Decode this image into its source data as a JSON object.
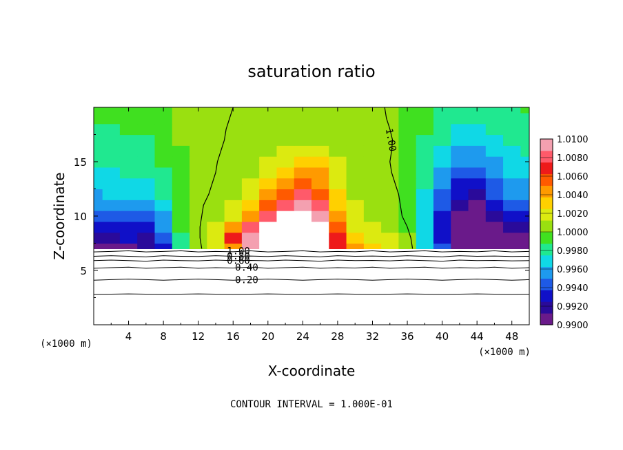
{
  "chart_data": {
    "type": "heatmap",
    "title": "saturation ratio",
    "xlabel": "X-coordinate",
    "ylabel": "Z-coordinate",
    "x_unit": "(×1000 m)",
    "z_unit": "(×1000 m)",
    "footer": "CONTOUR INTERVAL = 1.000E-01",
    "xlim": [
      0,
      50
    ],
    "ylim": [
      0,
      20
    ],
    "x_ticks": [
      4,
      8,
      12,
      16,
      20,
      24,
      28,
      32,
      36,
      40,
      44,
      48
    ],
    "y_ticks": [
      5,
      10,
      15
    ],
    "colorbar": {
      "min": 0.99,
      "max": 1.01,
      "tick_labels": [
        "1.0100",
        "1.0080",
        "1.0060",
        "1.0040",
        "1.0020",
        "1.0000",
        "0.9980",
        "0.9960",
        "0.9940",
        "0.9920",
        "0.9900"
      ],
      "colors": [
        "#6a1a8a",
        "#2a0a9a",
        "#1010c8",
        "#1e5ae6",
        "#1e9aee",
        "#10d8e6",
        "#20e890",
        "#40e020",
        "#9ae010",
        "#dcea10",
        "#ffd000",
        "#ff9a00",
        "#ff5a00",
        "#ee1a1a",
        "#ff5a6a",
        "#f4a0b0"
      ]
    },
    "field": {
      "x": [
        0,
        2,
        4,
        6,
        8,
        10,
        12,
        14,
        16,
        18,
        20,
        22,
        24,
        26,
        28,
        30,
        32,
        34,
        36,
        38,
        40,
        42,
        44,
        46,
        48,
        50
      ],
      "z": [
        7,
        8,
        9,
        10,
        11,
        12,
        13,
        14,
        15,
        16,
        17,
        18,
        19,
        20
      ],
      "values": [
        [
          0.9905,
          0.991,
          0.9912,
          0.9915,
          0.993,
          0.9985,
          1.0,
          1.002,
          1.005,
          1.009,
          1.012,
          1.013,
          1.012,
          1.012,
          1.007,
          1.004,
          1.003,
          1.002,
          1.0,
          0.997,
          0.994,
          0.99,
          0.989,
          0.991,
          0.9905,
          0.99
        ],
        [
          0.9915,
          0.992,
          0.9925,
          0.992,
          0.994,
          0.9985,
          1.0,
          1.002,
          1.007,
          1.009,
          1.012,
          1.013,
          1.012,
          1.012,
          1.007,
          1.0035,
          1.002,
          1.0015,
          1.0,
          0.997,
          0.9935,
          0.989,
          0.988,
          0.9905,
          0.991,
          0.9905
        ],
        [
          0.993,
          0.9935,
          0.9935,
          0.9925,
          0.995,
          0.999,
          1.0,
          1.0015,
          1.004,
          1.0075,
          1.011,
          1.013,
          1.013,
          1.012,
          1.006,
          1.0025,
          1.0015,
          1.001,
          0.9995,
          0.9965,
          0.993,
          0.9895,
          0.9885,
          0.991,
          0.992,
          0.992
        ],
        [
          0.9945,
          0.9945,
          0.994,
          0.994,
          0.996,
          0.999,
          1.0,
          1.001,
          1.0025,
          1.0045,
          1.008,
          1.012,
          1.013,
          1.01,
          1.0045,
          1.002,
          1.001,
          1.0005,
          0.9995,
          0.9965,
          0.9935,
          0.9905,
          0.9895,
          0.992,
          0.9935,
          0.9935
        ],
        [
          0.9955,
          0.9955,
          0.9955,
          0.9955,
          0.997,
          0.9995,
          1.0,
          1.0005,
          1.0015,
          1.003,
          1.0055,
          1.008,
          1.0095,
          1.0075,
          1.0035,
          1.0015,
          1.0008,
          1.0003,
          0.9995,
          0.9968,
          0.994,
          0.9915,
          0.9905,
          0.993,
          0.9945,
          0.9945
        ],
        [
          0.9962,
          0.9963,
          0.9965,
          0.9965,
          0.9978,
          0.9996,
          1.0,
          1.0003,
          1.001,
          1.002,
          1.004,
          1.006,
          1.0075,
          1.006,
          1.003,
          1.0012,
          1.0006,
          1.0002,
          0.9995,
          0.997,
          0.9945,
          0.9925,
          0.992,
          0.994,
          0.995,
          0.9952
        ],
        [
          0.9968,
          0.9969,
          0.997,
          0.9972,
          0.9983,
          0.9997,
          1.0,
          1.0002,
          1.0007,
          1.0015,
          1.003,
          1.0045,
          1.006,
          1.005,
          1.0025,
          1.001,
          1.0005,
          1.0002,
          0.9996,
          0.9975,
          0.9952,
          0.9935,
          0.9932,
          0.9948,
          0.9958,
          0.996
        ],
        [
          0.9973,
          0.9974,
          0.9975,
          0.9977,
          0.9987,
          0.9998,
          1.0,
          1.0001,
          1.0005,
          1.001,
          1.0022,
          1.0035,
          1.0045,
          1.004,
          1.002,
          1.0008,
          1.0004,
          1.0001,
          0.9996,
          0.9978,
          0.9958,
          0.9945,
          0.9942,
          0.9955,
          0.9963,
          0.9965
        ],
        [
          0.9977,
          0.9978,
          0.9979,
          0.9981,
          0.999,
          0.9999,
          1.0,
          1.0001,
          1.0003,
          1.0007,
          1.0015,
          1.0025,
          1.0032,
          1.0028,
          1.0015,
          1.0006,
          1.0003,
          1.0001,
          0.9997,
          0.9981,
          0.9964,
          0.9953,
          0.995,
          0.996,
          0.9967,
          0.997
        ],
        [
          0.998,
          0.9981,
          0.9982,
          0.9984,
          0.9992,
          0.9999,
          1.0,
          1.0,
          1.0002,
          1.0004,
          1.0009,
          1.0015,
          1.002,
          1.0018,
          1.001,
          1.0004,
          1.0002,
          1.0001,
          0.9997,
          0.9984,
          0.997,
          0.996,
          0.9958,
          0.9966,
          0.9972,
          0.9975
        ],
        [
          0.9983,
          0.9984,
          0.9985,
          0.9987,
          0.9994,
          1.0,
          1.0,
          1.0,
          1.0001,
          1.0003,
          1.0006,
          1.0009,
          1.0012,
          1.0011,
          1.0006,
          1.0003,
          1.0002,
          1.0001,
          0.9998,
          0.9987,
          0.9975,
          0.9967,
          0.9965,
          0.9972,
          0.9977,
          0.998
        ],
        [
          0.9986,
          0.9987,
          0.9988,
          0.9989,
          0.9995,
          1.0,
          1.0,
          1.0,
          1.0001,
          1.0002,
          1.0004,
          1.0006,
          1.0008,
          1.0007,
          1.0004,
          1.0002,
          1.0001,
          1.0,
          0.9998,
          0.9989,
          0.9979,
          0.9972,
          0.997,
          0.9976,
          0.9981,
          0.9984
        ],
        [
          0.9988,
          0.9989,
          0.999,
          0.9991,
          0.9996,
          1.0,
          1.0,
          1.0,
          1.0001,
          1.0001,
          1.0003,
          1.0004,
          1.0005,
          1.0005,
          1.0003,
          1.0001,
          1.0001,
          1.0,
          0.9999,
          0.9991,
          0.9982,
          0.9976,
          0.9975,
          0.998,
          0.9984,
          0.9986
        ],
        [
          0.9989,
          0.999,
          0.9991,
          0.9992,
          0.9997,
          1.0,
          1.0,
          1.0,
          1.0,
          1.0001,
          1.0002,
          1.0003,
          1.0004,
          1.0004,
          1.0002,
          1.0001,
          1.0001,
          1.0,
          0.9999,
          0.9992,
          0.9984,
          0.9979,
          0.9978,
          0.9982,
          0.9986,
          0.9988
        ]
      ]
    },
    "contours": [
      {
        "label": "1.00",
        "z": [
          6.7,
          6.75,
          6.8,
          6.7,
          6.75,
          6.8,
          6.7,
          6.75,
          6.72,
          6.8,
          6.7,
          6.75,
          6.8,
          6.7,
          6.75,
          6.72,
          6.8,
          6.7,
          6.75,
          6.8,
          6.7,
          6.75,
          6.72,
          6.8,
          6.7,
          6.75
        ]
      },
      {
        "label": "0.80",
        "z": [
          6.3,
          6.35,
          6.3,
          6.25,
          6.35,
          6.3,
          6.28,
          6.35,
          6.3,
          6.32,
          6.28,
          6.35,
          6.3,
          6.25,
          6.35,
          6.3,
          6.32,
          6.28,
          6.35,
          6.3,
          6.25,
          6.35,
          6.3,
          6.32,
          6.28,
          6.3
        ]
      },
      {
        "label": "0.60",
        "z": [
          5.9,
          5.95,
          5.9,
          5.85,
          5.95,
          5.9,
          5.88,
          5.95,
          5.9,
          5.92,
          5.88,
          5.95,
          5.9,
          5.85,
          5.95,
          5.9,
          5.92,
          5.88,
          5.95,
          5.9,
          5.85,
          5.95,
          5.9,
          5.92,
          5.88,
          5.9
        ]
      },
      {
        "label": "0.40",
        "z": [
          5.2,
          5.25,
          5.3,
          5.2,
          5.25,
          5.3,
          5.2,
          5.25,
          5.22,
          5.3,
          5.2,
          5.25,
          5.3,
          5.2,
          5.25,
          5.22,
          5.3,
          5.2,
          5.25,
          5.3,
          5.2,
          5.25,
          5.22,
          5.3,
          5.2,
          5.25
        ]
      },
      {
        "label": "0.20",
        "z": [
          4.1,
          4.15,
          4.2,
          4.15,
          4.1,
          4.15,
          4.2,
          4.15,
          4.1,
          4.15,
          4.2,
          4.15,
          4.1,
          4.15,
          4.2,
          4.15,
          4.1,
          4.15,
          4.2,
          4.15,
          4.1,
          4.15,
          4.2,
          4.15,
          4.1,
          4.15
        ]
      },
      {
        "label": "",
        "z": [
          2.8,
          2.82,
          2.84,
          2.82,
          2.8,
          2.82,
          2.84,
          2.82,
          2.8,
          2.82,
          2.84,
          2.82,
          2.8,
          2.82,
          2.84,
          2.82,
          2.8,
          2.82,
          2.84,
          2.82,
          2.8,
          2.82,
          2.84,
          2.82,
          2.8,
          2.82
        ]
      }
    ],
    "unity_lines": [
      {
        "label": "",
        "x": [
          16.0,
          15.6,
          15.2,
          15.0,
          14.6,
          14.2,
          14.0,
          13.6,
          13.2,
          12.6,
          12.4,
          12.2,
          12.2,
          12.4
        ],
        "z": [
          20,
          19,
          18,
          17,
          16,
          15,
          14,
          13,
          12,
          11,
          10,
          9,
          8,
          7
        ]
      },
      {
        "label": "1.00",
        "x": [
          33.4,
          33.6,
          34.0,
          34.3,
          34.2,
          34.0,
          34.2,
          34.6,
          35.0,
          35.2,
          35.4,
          36.0,
          36.4,
          36.6
        ],
        "z": [
          20,
          19,
          18,
          17,
          16,
          15,
          14,
          13,
          12,
          11,
          10,
          9,
          8,
          7
        ]
      }
    ]
  }
}
